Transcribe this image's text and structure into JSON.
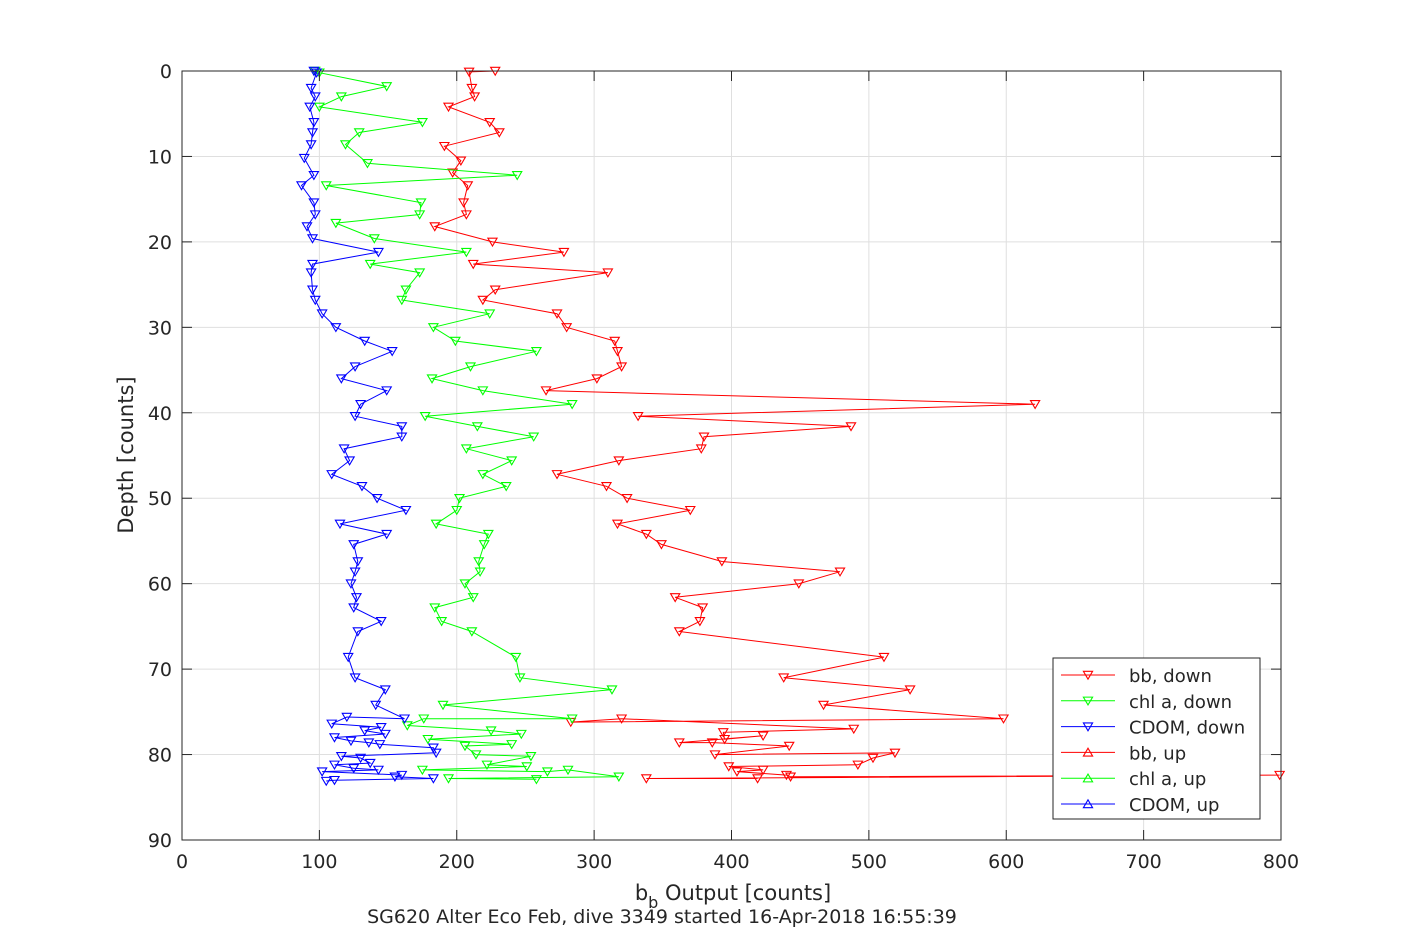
{
  "chart_data": {
    "type": "line",
    "title": "SG620 Alter Eco Feb, dive 3349 started 16-Apr-2018 16:55:39",
    "xlabel_main": "b",
    "xlabel_sub": "b",
    "xlabel_rest": " Output [counts]",
    "ylabel": "Depth [counts]",
    "xlim": [
      0,
      800
    ],
    "ylim": [
      0,
      90
    ],
    "y_reversed": true,
    "grid": true,
    "legend_position": "bottom-right",
    "xticks": [
      0,
      100,
      200,
      300,
      400,
      500,
      600,
      700,
      800
    ],
    "yticks": [
      0,
      10,
      20,
      30,
      40,
      50,
      60,
      70,
      80,
      90
    ],
    "colors": {
      "red": "#ff0000",
      "green": "#00ff00",
      "blue": "#0000ff",
      "axis": "#262626",
      "grid": "#dfdfdf"
    },
    "series": [
      {
        "name": "bb, down",
        "color": "#ff0000",
        "marker": "triangle-down",
        "points": [
          [
            228,
            0.0
          ],
          [
            209,
            0.1
          ],
          [
            211,
            2.0
          ],
          [
            213,
            3.0
          ],
          [
            194,
            4.2
          ],
          [
            224,
            6.0
          ],
          [
            231,
            7.2
          ],
          [
            191,
            8.8
          ],
          [
            203,
            10.5
          ],
          [
            197,
            11.9
          ],
          [
            208,
            13.4
          ],
          [
            205,
            15.4
          ],
          [
            207,
            16.8
          ],
          [
            184,
            18.2
          ],
          [
            226,
            20.0
          ],
          [
            278,
            21.2
          ],
          [
            212,
            22.6
          ],
          [
            310,
            23.6
          ],
          [
            228,
            25.6
          ],
          [
            219,
            26.8
          ],
          [
            273,
            28.4
          ],
          [
            280,
            30.0
          ],
          [
            315,
            31.6
          ],
          [
            317,
            32.8
          ],
          [
            320,
            34.6
          ],
          [
            302,
            36.0
          ],
          [
            265,
            37.4
          ],
          [
            621,
            39.0
          ],
          [
            332,
            40.4
          ],
          [
            487,
            41.6
          ],
          [
            380,
            42.8
          ],
          [
            378,
            44.2
          ],
          [
            318,
            45.6
          ],
          [
            273,
            47.2
          ],
          [
            309,
            48.6
          ],
          [
            324,
            50.0
          ],
          [
            370,
            51.4
          ],
          [
            317,
            53.0
          ],
          [
            338,
            54.2
          ],
          [
            349,
            55.4
          ],
          [
            393,
            57.4
          ],
          [
            479,
            58.6
          ],
          [
            449,
            60.0
          ],
          [
            359,
            61.6
          ],
          [
            379,
            62.8
          ],
          [
            377,
            64.4
          ],
          [
            362,
            65.6
          ],
          [
            511,
            68.6
          ],
          [
            438,
            71.0
          ],
          [
            530,
            72.4
          ],
          [
            467,
            74.2
          ],
          [
            598,
            75.8
          ],
          [
            283,
            76.2
          ],
          [
            320,
            75.8
          ],
          [
            489,
            77.0
          ],
          [
            394,
            77.4
          ],
          [
            395,
            78.2
          ],
          [
            423,
            77.8
          ],
          [
            362,
            78.6
          ],
          [
            386,
            78.6
          ],
          [
            442,
            79.0
          ],
          [
            388,
            80.0
          ],
          [
            519,
            79.8
          ],
          [
            503,
            80.4
          ],
          [
            492,
            81.2
          ],
          [
            398,
            81.4
          ],
          [
            423,
            81.8
          ],
          [
            404,
            82.0
          ],
          [
            440,
            82.4
          ],
          [
            443,
            82.6
          ],
          [
            799,
            82.4
          ],
          [
            338,
            82.8
          ],
          [
            419,
            82.8
          ]
        ]
      },
      {
        "name": "chl a, down",
        "color": "#00ff00",
        "marker": "triangle-down",
        "points": [
          [
            97,
            0.0
          ],
          [
            100,
            0.2
          ],
          [
            149,
            1.8
          ],
          [
            116,
            3.0
          ],
          [
            100,
            4.2
          ],
          [
            175,
            6.0
          ],
          [
            129,
            7.2
          ],
          [
            119,
            8.6
          ],
          [
            135,
            10.8
          ],
          [
            244,
            12.2
          ],
          [
            105,
            13.4
          ],
          [
            174,
            15.4
          ],
          [
            173,
            16.8
          ],
          [
            112,
            17.8
          ],
          [
            140,
            19.6
          ],
          [
            207,
            21.2
          ],
          [
            137,
            22.6
          ],
          [
            173,
            23.6
          ],
          [
            163,
            25.6
          ],
          [
            160,
            26.8
          ],
          [
            224,
            28.4
          ],
          [
            183,
            30.0
          ],
          [
            199,
            31.6
          ],
          [
            258,
            32.8
          ],
          [
            210,
            34.6
          ],
          [
            182,
            36.0
          ],
          [
            219,
            37.4
          ],
          [
            284,
            39.0
          ],
          [
            177,
            40.4
          ],
          [
            215,
            41.6
          ],
          [
            256,
            42.8
          ],
          [
            207,
            44.2
          ],
          [
            240,
            45.6
          ],
          [
            219,
            47.2
          ],
          [
            236,
            48.6
          ],
          [
            202,
            50.0
          ],
          [
            200,
            51.4
          ],
          [
            185,
            53.0
          ],
          [
            223,
            54.2
          ],
          [
            220,
            55.4
          ],
          [
            216,
            57.4
          ],
          [
            217,
            58.6
          ],
          [
            206,
            60.0
          ],
          [
            212,
            61.6
          ],
          [
            184,
            62.8
          ],
          [
            189,
            64.4
          ],
          [
            211,
            65.6
          ],
          [
            243,
            68.6
          ],
          [
            246,
            71.0
          ],
          [
            313,
            72.4
          ],
          [
            190,
            74.2
          ],
          [
            284,
            75.8
          ],
          [
            176,
            75.8
          ],
          [
            164,
            76.6
          ],
          [
            225,
            77.2
          ],
          [
            247,
            77.6
          ],
          [
            179,
            78.2
          ],
          [
            240,
            78.8
          ],
          [
            206,
            79.0
          ],
          [
            214,
            80.0
          ],
          [
            254,
            80.2
          ],
          [
            222,
            81.2
          ],
          [
            251,
            81.4
          ],
          [
            175,
            81.8
          ],
          [
            266,
            82.0
          ],
          [
            281,
            81.8
          ],
          [
            318,
            82.6
          ],
          [
            194,
            82.8
          ],
          [
            258,
            82.9
          ]
        ]
      },
      {
        "name": "CDOM, down",
        "color": "#0000ff",
        "marker": "triangle-down",
        "points": [
          [
            96,
            0.0
          ],
          [
            98,
            0.2
          ],
          [
            94,
            2.0
          ],
          [
            97,
            3.0
          ],
          [
            93,
            4.2
          ],
          [
            96,
            6.0
          ],
          [
            95,
            7.2
          ],
          [
            94,
            8.6
          ],
          [
            89,
            10.2
          ],
          [
            96,
            12.2
          ],
          [
            87,
            13.4
          ],
          [
            96,
            15.4
          ],
          [
            97,
            16.8
          ],
          [
            91,
            18.2
          ],
          [
            95,
            19.6
          ],
          [
            143,
            21.2
          ],
          [
            95,
            22.6
          ],
          [
            94,
            23.6
          ],
          [
            95,
            25.6
          ],
          [
            97,
            26.8
          ],
          [
            102,
            28.4
          ],
          [
            112,
            30.0
          ],
          [
            133,
            31.6
          ],
          [
            153,
            32.8
          ],
          [
            126,
            34.6
          ],
          [
            116,
            36.0
          ],
          [
            149,
            37.4
          ],
          [
            130,
            39.0
          ],
          [
            126,
            40.4
          ],
          [
            160,
            41.6
          ],
          [
            160,
            42.8
          ],
          [
            118,
            44.2
          ],
          [
            122,
            45.6
          ],
          [
            109,
            47.2
          ],
          [
            131,
            48.6
          ],
          [
            142,
            50.0
          ],
          [
            163,
            51.4
          ],
          [
            115,
            53.0
          ],
          [
            149,
            54.2
          ],
          [
            125,
            55.4
          ],
          [
            128,
            57.4
          ],
          [
            126,
            58.6
          ],
          [
            123,
            60.0
          ],
          [
            127,
            61.6
          ],
          [
            125,
            62.8
          ],
          [
            145,
            64.4
          ],
          [
            128,
            65.6
          ],
          [
            121,
            68.6
          ],
          [
            126,
            71.0
          ],
          [
            148,
            72.4
          ],
          [
            141,
            74.2
          ],
          [
            162,
            75.8
          ],
          [
            120,
            75.6
          ],
          [
            109,
            76.4
          ],
          [
            145,
            76.8
          ],
          [
            133,
            77.2
          ],
          [
            148,
            77.6
          ],
          [
            111,
            78.0
          ],
          [
            123,
            78.4
          ],
          [
            136,
            78.6
          ],
          [
            144,
            78.8
          ],
          [
            183,
            79.2
          ],
          [
            185,
            79.8
          ],
          [
            116,
            80.2
          ],
          [
            130,
            80.4
          ],
          [
            137,
            81.0
          ],
          [
            111,
            81.2
          ],
          [
            125,
            81.6
          ],
          [
            143,
            81.8
          ],
          [
            102,
            82.0
          ],
          [
            160,
            82.4
          ],
          [
            155,
            82.6
          ],
          [
            183,
            82.8
          ],
          [
            111,
            83.0
          ],
          [
            105,
            83.1
          ]
        ]
      },
      {
        "name": "bb, up",
        "color": "#ff0000",
        "marker": "triangle-up",
        "points": []
      },
      {
        "name": "chl a, up",
        "color": "#00ff00",
        "marker": "triangle-up",
        "points": []
      },
      {
        "name": "CDOM, up",
        "color": "#0000ff",
        "marker": "triangle-up",
        "points": []
      }
    ]
  }
}
